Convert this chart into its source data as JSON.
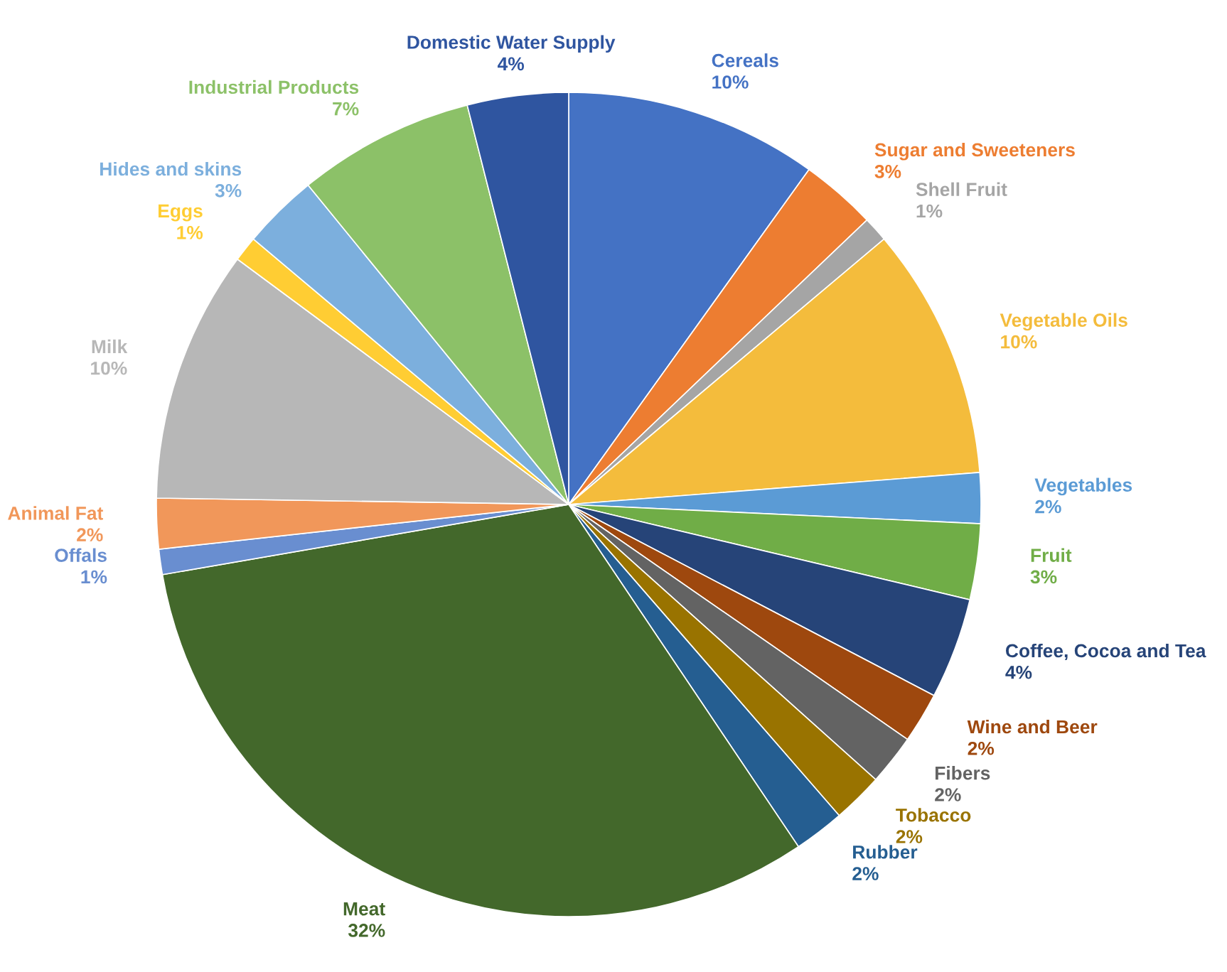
{
  "chart_data": {
    "type": "pie",
    "categories": [
      "Cereals",
      "Sugar and Sweeteners",
      "Shell Fruit",
      "Vegetable Oils",
      "Vegetables",
      "Fruit",
      "Coffee, Cocoa and Tea",
      "Wine and Beer",
      "Fibers",
      "Tobacco",
      "Rubber",
      "Meat",
      "Offals",
      "Animal Fat",
      "Milk",
      "Eggs",
      "Hides and skins",
      "Industrial Products",
      "Domestic Water Supply"
    ],
    "values": [
      10,
      3,
      1,
      10,
      2,
      3,
      4,
      2,
      2,
      2,
      2,
      32,
      1,
      2,
      10,
      1,
      3,
      7,
      4
    ],
    "value_labels": [
      "10%",
      "3%",
      "1%",
      "10%",
      "2%",
      "3%",
      "4%",
      "2%",
      "2%",
      "2%",
      "2%",
      "32%",
      "1%",
      "2%",
      "10%",
      "1%",
      "3%",
      "7%",
      "4%"
    ],
    "colors": [
      "#4472c4",
      "#ed7d31",
      "#a5a5a5",
      "#f4bc3c",
      "#5b9bd5",
      "#70ad47",
      "#264478",
      "#9e480e",
      "#636363",
      "#997300",
      "#255e91",
      "#43682b",
      "#698ed0",
      "#f1975a",
      "#b7b7b7",
      "#ffcd33",
      "#7cafdd",
      "#8cc168",
      "#2f55a0"
    ],
    "legend": false
  }
}
